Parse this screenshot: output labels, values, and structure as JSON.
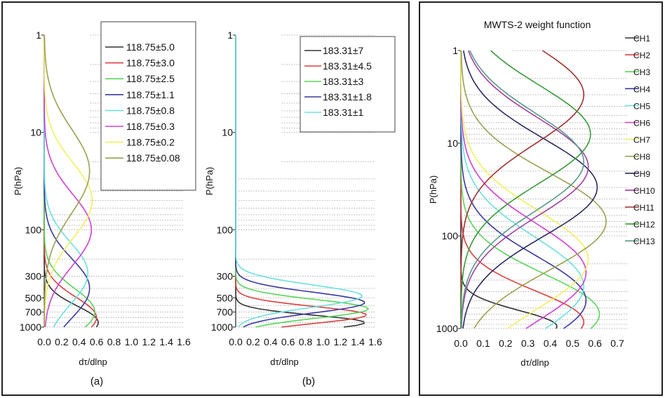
{
  "chart_data": [
    {
      "type": "line",
      "panel_label": "(a)",
      "xlabel": "dτ/dlnp",
      "ylabel": "P(hPa)",
      "y_scale": "log",
      "y_reversed": true,
      "xlim": [
        0,
        1.6
      ],
      "ylim": [
        1,
        1000
      ],
      "x_ticks": [
        "0.0",
        "0.2",
        "0.4",
        "0.6",
        "0.8",
        "1.0",
        "1.2",
        "1.4",
        "1.6"
      ],
      "y_ticks": [
        "1",
        "10",
        "100",
        "300",
        "500",
        "700",
        "1000"
      ],
      "grid": "horizontal dotted",
      "legend_position": "top-right",
      "series": [
        {
          "name": "118.75±5.0",
          "color": "#333333",
          "peak_p": 900,
          "peak_x": 0.62,
          "width": 0.18
        },
        {
          "name": "118.75±3.0",
          "color": "#d94040",
          "peak_p": 800,
          "peak_x": 0.6,
          "width": 0.22
        },
        {
          "name": "118.75±2.5",
          "color": "#5ad45a",
          "peak_p": 700,
          "peak_x": 0.58,
          "width": 0.25
        },
        {
          "name": "118.75±1.1",
          "color": "#3a3aa0",
          "peak_p": 400,
          "peak_x": 0.52,
          "width": 0.32
        },
        {
          "name": "118.75±0.8",
          "color": "#6ae0e0",
          "peak_p": 280,
          "peak_x": 0.5,
          "width": 0.33
        },
        {
          "name": "118.75±0.3",
          "color": "#d040d0",
          "peak_p": 100,
          "peak_x": 0.54,
          "width": 0.38
        },
        {
          "name": "118.75±0.2",
          "color": "#f0f060",
          "peak_p": 50,
          "peak_x": 0.55,
          "width": 0.4
        },
        {
          "name": "118.75±0.08",
          "color": "#9aa050",
          "peak_p": 25,
          "peak_x": 0.52,
          "width": 0.45
        }
      ]
    },
    {
      "type": "line",
      "panel_label": "(b)",
      "xlabel": "dτ/dlnp",
      "ylabel": "P(hPa)",
      "y_scale": "log",
      "y_reversed": true,
      "xlim": [
        0,
        1.6
      ],
      "ylim": [
        1,
        1000
      ],
      "x_ticks": [
        "0.0",
        "0.2",
        "0.4",
        "0.6",
        "0.8",
        "1.0",
        "1.2",
        "1.4",
        "1.6"
      ],
      "y_ticks": [
        "1",
        "10",
        "100",
        "300",
        "500",
        "700",
        "1000"
      ],
      "grid": "horizontal dotted",
      "legend_position": "top-right",
      "series": [
        {
          "name": "183.31±7",
          "color": "#333333",
          "peak_p": 900,
          "peak_x": 1.48,
          "width": 0.08
        },
        {
          "name": "183.31±4.5",
          "color": "#d94040",
          "peak_p": 750,
          "peak_x": 1.5,
          "width": 0.09
        },
        {
          "name": "183.31±3",
          "color": "#5ad45a",
          "peak_p": 650,
          "peak_x": 1.52,
          "width": 0.1
        },
        {
          "name": "183.31±1.8",
          "color": "#3a3aa0",
          "peak_p": 560,
          "peak_x": 1.48,
          "width": 0.11
        },
        {
          "name": "183.31±1",
          "color": "#6ae0e0",
          "peak_p": 480,
          "peak_x": 1.45,
          "width": 0.12
        }
      ]
    },
    {
      "type": "line",
      "title": "MWTS-2 weight function",
      "xlabel": "dτ/dlnp",
      "ylabel": "P(hPa)",
      "y_scale": "log",
      "y_reversed": true,
      "xlim": [
        0,
        0.7
      ],
      "ylim": [
        1,
        1000
      ],
      "x_ticks": [
        "0.0",
        "0.1",
        "0.2",
        "0.3",
        "0.4",
        "0.5",
        "0.6",
        "0.7"
      ],
      "y_ticks": [
        "1",
        "10",
        "100",
        "1000"
      ],
      "grid": "horizontal dotted",
      "legend_position": "right",
      "series": [
        {
          "name": "CH1",
          "color": "#333333",
          "peak_p": 950,
          "peak_x": 0.43,
          "width": 0.18
        },
        {
          "name": "CH2",
          "color": "#d94040",
          "peak_p": 850,
          "peak_x": 0.55,
          "width": 0.35
        },
        {
          "name": "CH3",
          "color": "#5ad45a",
          "peak_p": 700,
          "peak_x": 0.62,
          "width": 0.45
        },
        {
          "name": "CH4",
          "color": "#3a3aa0",
          "peak_p": 500,
          "peak_x": 0.56,
          "width": 0.5
        },
        {
          "name": "CH5",
          "color": "#6ae0e0",
          "peak_p": 350,
          "peak_x": 0.55,
          "width": 0.55
        },
        {
          "name": "CH6",
          "color": "#d040d0",
          "peak_p": 250,
          "peak_x": 0.56,
          "width": 0.55
        },
        {
          "name": "CH7",
          "color": "#f0f060",
          "peak_p": 180,
          "peak_x": 0.57,
          "width": 0.55
        },
        {
          "name": "CH8",
          "color": "#9aa050",
          "peak_p": 70,
          "peak_x": 0.65,
          "width": 0.55
        },
        {
          "name": "CH9",
          "color": "#2a2a60",
          "peak_p": 30,
          "peak_x": 0.61,
          "width": 0.55
        },
        {
          "name": "CH10",
          "color": "#a040a0",
          "peak_p": 18,
          "peak_x": 0.57,
          "width": 0.55
        },
        {
          "name": "CH11",
          "color": "#a03030",
          "peak_p": 3,
          "peak_x": 0.55,
          "width": 0.55
        },
        {
          "name": "CH12",
          "color": "#3a9a3a",
          "peak_p": 8,
          "peak_x": 0.58,
          "width": 0.55
        },
        {
          "name": "CH13",
          "color": "#5a9a8a",
          "peak_p": 16,
          "peak_x": 0.55,
          "width": 0.55
        }
      ]
    }
  ]
}
